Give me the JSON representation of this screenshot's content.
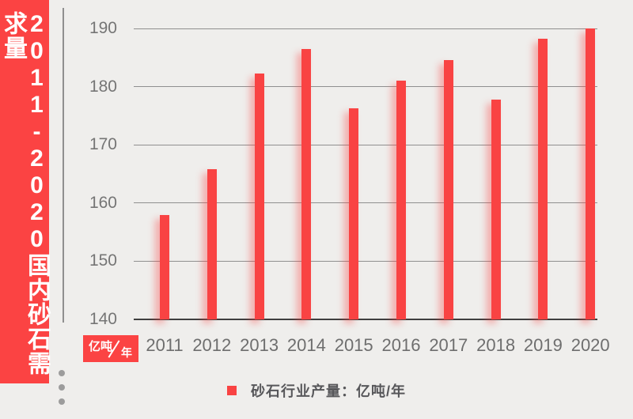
{
  "sidebar": {
    "title": "2011-2020国内砂石需求量"
  },
  "chart_data": {
    "type": "bar",
    "title": "2011-2020国内砂石需求量",
    "categories": [
      "2011",
      "2012",
      "2013",
      "2014",
      "2015",
      "2016",
      "2017",
      "2018",
      "2019",
      "2020"
    ],
    "values": [
      158,
      165.8,
      182.2,
      186.5,
      176.3,
      181,
      184.5,
      177.8,
      188.2,
      190
    ],
    "series_name": "砂石行业产量",
    "ylabel": "亿吨/年",
    "ylim": [
      140,
      190
    ],
    "yticks": [
      190,
      180,
      170,
      160,
      150,
      140
    ],
    "grid": true,
    "legend_position": "bottom",
    "bar_color": "#f94343"
  },
  "unit_badge": {
    "numerator": "亿吨",
    "denominator": "年"
  },
  "legend": {
    "label": "砂石行业产量：亿吨/年",
    "swatch_color": "#f94343"
  },
  "colors": {
    "accent_red": "#fb4343",
    "bar_red": "#f94343",
    "background": "#efeeec",
    "grid": "#8f8f8f",
    "baseline": "#3f3f3f",
    "tick_text": "#757575",
    "legend_text": "#57575a"
  }
}
